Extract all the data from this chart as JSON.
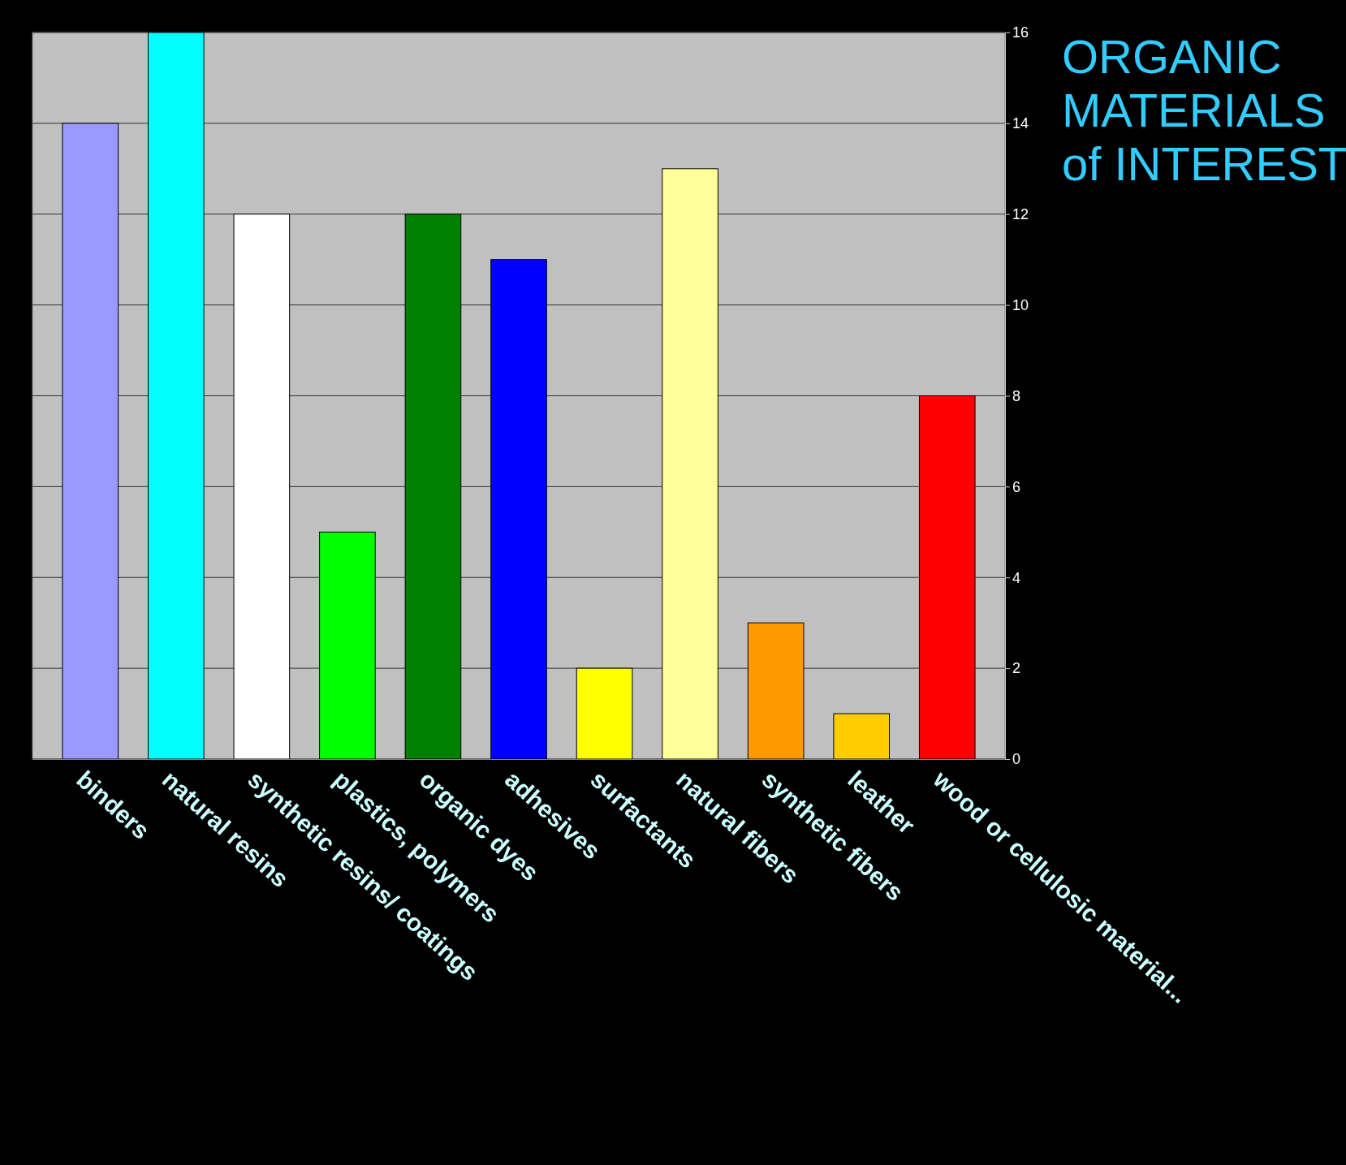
{
  "chart_data": {
    "type": "bar",
    "title": "ORGANIC MATERIALS of INTEREST",
    "categories": [
      "binders",
      "natural resins",
      "synthetic resins/ coatings",
      "plastics, polymers",
      "organic dyes",
      "adhesives",
      "surfactants",
      "natural fibers",
      "synthetic  fibers",
      "leather",
      "wood or cellulosic material..."
    ],
    "values": [
      14,
      16,
      12,
      5,
      12,
      11,
      2,
      13,
      3,
      1,
      8
    ],
    "colors": [
      "#9999ff",
      "#00ffff",
      "#ffffff",
      "#00ff00",
      "#008000",
      "#0000ff",
      "#ffff00",
      "#ffff99",
      "#ff9900",
      "#ffcc00",
      "#ff0000"
    ],
    "ylim": [
      0,
      16
    ],
    "yticks": [
      0,
      2,
      4,
      6,
      8,
      10,
      12,
      14,
      16
    ],
    "grid": "y"
  }
}
